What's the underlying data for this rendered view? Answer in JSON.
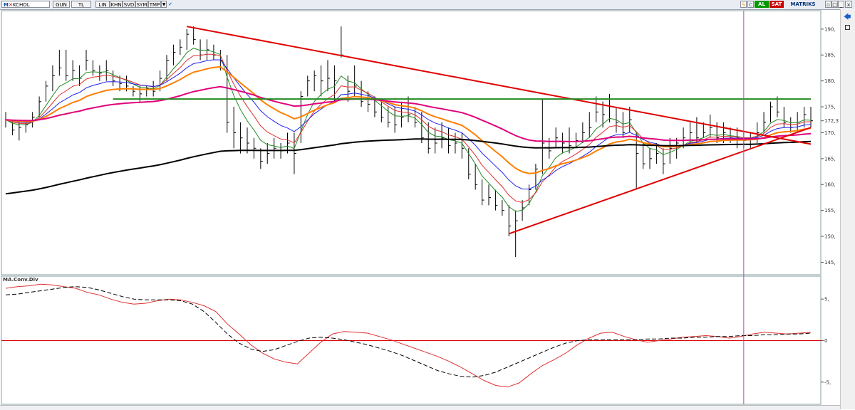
{
  "toolbar": {
    "symbol": "KCHOL",
    "buttons": [
      "GUN",
      "TL",
      "LIN",
      "KHN",
      "SVD",
      "SYM",
      "TMP"
    ],
    "al": "AL",
    "sat": "SAT",
    "brand": "MATRIKS",
    "al_color": "#009900",
    "sat_color": "#cc0000"
  },
  "chart_data": [
    {
      "type": "candlestick",
      "title": "",
      "ylim": [
        143,
        193
      ],
      "y_ticks": [
        "190,",
        "185,",
        "180,",
        "175,",
        "172,3",
        "170,",
        "165,",
        "160,",
        "155,",
        "150,",
        "145,"
      ],
      "y_tick_values": [
        190,
        185,
        180,
        175,
        172.3,
        170,
        165,
        160,
        155,
        150,
        145
      ],
      "last_price": 172.3,
      "bars": [
        {
          "h": 174,
          "l": 171,
          "c": 172.5
        },
        {
          "h": 172.5,
          "l": 169.5,
          "c": 170.5
        },
        {
          "h": 172,
          "l": 168.5,
          "c": 171
        },
        {
          "h": 172.5,
          "l": 170,
          "c": 171.5
        },
        {
          "h": 174,
          "l": 171,
          "c": 173
        },
        {
          "h": 177,
          "l": 173,
          "c": 176
        },
        {
          "h": 180,
          "l": 176,
          "c": 179
        },
        {
          "h": 183,
          "l": 178,
          "c": 181
        },
        {
          "h": 186,
          "l": 181,
          "c": 182.5
        },
        {
          "h": 186,
          "l": 180,
          "c": 181
        },
        {
          "h": 184,
          "l": 180,
          "c": 182
        },
        {
          "h": 183,
          "l": 179,
          "c": 180.5
        },
        {
          "h": 186,
          "l": 182,
          "c": 184
        },
        {
          "h": 184,
          "l": 181,
          "c": 182
        },
        {
          "h": 183,
          "l": 180,
          "c": 181.5
        },
        {
          "h": 184,
          "l": 180,
          "c": 182
        },
        {
          "h": 182,
          "l": 179,
          "c": 180
        },
        {
          "h": 181,
          "l": 178,
          "c": 179.5
        },
        {
          "h": 181,
          "l": 178,
          "c": 179
        },
        {
          "h": 179,
          "l": 177,
          "c": 178
        },
        {
          "h": 179,
          "l": 176,
          "c": 177.5
        },
        {
          "h": 179,
          "l": 177,
          "c": 178.5
        },
        {
          "h": 180,
          "l": 177,
          "c": 178
        },
        {
          "h": 182,
          "l": 178,
          "c": 180.5
        },
        {
          "h": 185,
          "l": 180,
          "c": 184
        },
        {
          "h": 187,
          "l": 183,
          "c": 185.5
        },
        {
          "h": 188,
          "l": 185,
          "c": 186.5
        },
        {
          "h": 190,
          "l": 186,
          "c": 189
        },
        {
          "h": 190.5,
          "l": 187,
          "c": 188
        },
        {
          "h": 188,
          "l": 184,
          "c": 185
        },
        {
          "h": 188,
          "l": 184,
          "c": 186
        },
        {
          "h": 187,
          "l": 184,
          "c": 185
        },
        {
          "h": 186,
          "l": 182,
          "c": 184
        },
        {
          "h": 185,
          "l": 170,
          "c": 172
        },
        {
          "h": 175,
          "l": 167,
          "c": 170
        },
        {
          "h": 172,
          "l": 166,
          "c": 169
        },
        {
          "h": 171,
          "l": 166,
          "c": 168
        },
        {
          "h": 169,
          "l": 165,
          "c": 167
        },
        {
          "h": 167,
          "l": 163,
          "c": 164.5
        },
        {
          "h": 168,
          "l": 164,
          "c": 166
        },
        {
          "h": 169,
          "l": 165,
          "c": 167
        },
        {
          "h": 168,
          "l": 165,
          "c": 166.5
        },
        {
          "h": 170,
          "l": 166,
          "c": 168
        },
        {
          "h": 170,
          "l": 162,
          "c": 166
        },
        {
          "h": 178,
          "l": 168,
          "c": 177
        },
        {
          "h": 181,
          "l": 177,
          "c": 180
        },
        {
          "h": 182,
          "l": 178,
          "c": 181
        },
        {
          "h": 183,
          "l": 177,
          "c": 180
        },
        {
          "h": 184,
          "l": 178,
          "c": 180.5
        },
        {
          "h": 183,
          "l": 176,
          "c": 180
        },
        {
          "h": 190.5,
          "l": 184.5,
          "c": 185
        },
        {
          "h": 181,
          "l": 176,
          "c": 178
        },
        {
          "h": 183,
          "l": 177,
          "c": 179
        },
        {
          "h": 180,
          "l": 175,
          "c": 176
        },
        {
          "h": 178,
          "l": 174,
          "c": 175.5
        },
        {
          "h": 177,
          "l": 173,
          "c": 174
        },
        {
          "h": 176,
          "l": 172,
          "c": 173
        },
        {
          "h": 175,
          "l": 171,
          "c": 172
        },
        {
          "h": 175,
          "l": 170,
          "c": 171.5
        },
        {
          "h": 176,
          "l": 171,
          "c": 173
        },
        {
          "h": 177,
          "l": 172,
          "c": 173.5
        },
        {
          "h": 175,
          "l": 171,
          "c": 172
        },
        {
          "h": 174,
          "l": 168,
          "c": 169
        },
        {
          "h": 172,
          "l": 166,
          "c": 167
        },
        {
          "h": 171,
          "l": 166,
          "c": 168
        },
        {
          "h": 172,
          "l": 167,
          "c": 169
        },
        {
          "h": 171,
          "l": 166,
          "c": 167.5
        },
        {
          "h": 170,
          "l": 166,
          "c": 168
        },
        {
          "h": 170,
          "l": 165,
          "c": 167
        },
        {
          "h": 167,
          "l": 161,
          "c": 162
        },
        {
          "h": 164,
          "l": 159,
          "c": 160
        },
        {
          "h": 161,
          "l": 156,
          "c": 157
        },
        {
          "h": 160,
          "l": 156,
          "c": 157.5
        },
        {
          "h": 159,
          "l": 155,
          "c": 156
        },
        {
          "h": 157,
          "l": 154,
          "c": 155
        },
        {
          "h": 156,
          "l": 150,
          "c": 152
        },
        {
          "h": 155,
          "l": 146,
          "c": 153
        },
        {
          "h": 157,
          "l": 153,
          "c": 155.5
        },
        {
          "h": 160,
          "l": 156,
          "c": 159
        },
        {
          "h": 164,
          "l": 159,
          "c": 163
        },
        {
          "h": 176.5,
          "l": 162,
          "c": 168
        },
        {
          "h": 169,
          "l": 165,
          "c": 166.5
        },
        {
          "h": 171,
          "l": 167,
          "c": 169
        },
        {
          "h": 170,
          "l": 166,
          "c": 168
        },
        {
          "h": 171,
          "l": 166,
          "c": 167.5
        },
        {
          "h": 170,
          "l": 167,
          "c": 168.5
        },
        {
          "h": 172,
          "l": 168,
          "c": 170
        },
        {
          "h": 174,
          "l": 169,
          "c": 171
        },
        {
          "h": 177,
          "l": 172,
          "c": 174
        },
        {
          "h": 176,
          "l": 171,
          "c": 173.5
        },
        {
          "h": 177.5,
          "l": 172,
          "c": 175
        },
        {
          "h": 175,
          "l": 170,
          "c": 172
        },
        {
          "h": 174,
          "l": 169,
          "c": 170
        },
        {
          "h": 175,
          "l": 170,
          "c": 172.5
        },
        {
          "h": 170,
          "l": 159,
          "c": 166
        },
        {
          "h": 168,
          "l": 163,
          "c": 164
        },
        {
          "h": 167,
          "l": 163,
          "c": 165
        },
        {
          "h": 168,
          "l": 164,
          "c": 166
        },
        {
          "h": 167,
          "l": 162,
          "c": 164
        },
        {
          "h": 169,
          "l": 164,
          "c": 167
        },
        {
          "h": 169,
          "l": 165,
          "c": 168
        },
        {
          "h": 171,
          "l": 167,
          "c": 169
        },
        {
          "h": 172,
          "l": 168,
          "c": 170
        },
        {
          "h": 173,
          "l": 168,
          "c": 169
        },
        {
          "h": 172,
          "l": 169,
          "c": 170
        },
        {
          "h": 173.5,
          "l": 169,
          "c": 171
        },
        {
          "h": 172,
          "l": 168,
          "c": 169
        },
        {
          "h": 172,
          "l": 168,
          "c": 170
        },
        {
          "h": 171,
          "l": 168,
          "c": 169
        },
        {
          "h": 171,
          "l": 167,
          "c": 169
        },
        {
          "h": 170,
          "l": 167,
          "c": 168.5
        },
        {
          "h": 170,
          "l": 167,
          "c": 169
        },
        {
          "h": 172,
          "l": 168,
          "c": 170
        },
        {
          "h": 174,
          "l": 170,
          "c": 172
        },
        {
          "h": 176,
          "l": 172,
          "c": 175
        },
        {
          "h": 177,
          "l": 173,
          "c": 174
        },
        {
          "h": 175,
          "l": 171,
          "c": 172
        },
        {
          "h": 173,
          "l": 170,
          "c": 171
        },
        {
          "h": 174,
          "l": 170,
          "c": 172
        },
        {
          "h": 175,
          "l": 171,
          "c": 173.5
        },
        {
          "h": 175,
          "l": 171,
          "c": 172.3
        }
      ],
      "moving_averages": [
        {
          "color": "#228B22",
          "period": 5
        },
        {
          "color": "#e03030",
          "period": 8
        },
        {
          "color": "#2222ee",
          "period": 13
        },
        {
          "color": "#ff7f00",
          "period": 21
        },
        {
          "color": "#e0007a",
          "period": 55
        },
        {
          "color": "#000000",
          "period": 144
        }
      ],
      "ma_seed_value": 158,
      "trendlines": [
        {
          "color": "#e00000",
          "from": {
            "bar": 27,
            "y": 190.5
          },
          "to": {
            "bar": 120,
            "y": 167.8
          }
        },
        {
          "color": "#e00000",
          "from": {
            "bar": 75,
            "y": 150.5
          },
          "to": {
            "bar": 120,
            "y": 171
          }
        },
        {
          "color": "#228B22",
          "from": {
            "bar": 16,
            "y": 176.5
          },
          "to": {
            "bar": 120,
            "y": 176.5
          }
        }
      ],
      "vertical_marker_bar": 110
    },
    {
      "type": "line",
      "title": "MA.Conv.Div",
      "ylim": [
        -7.5,
        7.5
      ],
      "y_ticks": [
        "5,",
        "0",
        "-5,"
      ],
      "y_tick_values": [
        5,
        0,
        -5
      ],
      "zero_line_color": "#e00000",
      "series": [
        {
          "color": "#e03030",
          "dash": false,
          "values": [
            6.3,
            6.5,
            6.6,
            6.8,
            6.7,
            6.5,
            6.3,
            5.8,
            5.5,
            5.0,
            4.6,
            4.4,
            4.5,
            4.8,
            5.0,
            4.9,
            4.6,
            4.2,
            3.5,
            2.0,
            0.8,
            -0.5,
            -1.5,
            -2.2,
            -2.6,
            -2.8,
            -1.5,
            -0.2,
            0.8,
            1.1,
            1.0,
            0.9,
            0.5,
            0.1,
            -0.4,
            -0.9,
            -1.4,
            -1.9,
            -2.5,
            -3.2,
            -4.0,
            -4.8,
            -5.4,
            -5.6,
            -5.1,
            -4.0,
            -3.0,
            -2.3,
            -1.5,
            -0.5,
            0.3,
            0.9,
            1.0,
            0.5,
            0.1,
            -0.2,
            0.0,
            0.2,
            0.4,
            0.5,
            0.6,
            0.5,
            0.3,
            0.5,
            0.8,
            1.0,
            0.9,
            0.8,
            0.9,
            1.0
          ]
        },
        {
          "color": "#000000",
          "dash": true,
          "values": [
            5.5,
            5.6,
            5.8,
            6.0,
            6.2,
            6.4,
            6.5,
            6.4,
            6.1,
            5.7,
            5.3,
            5.0,
            4.9,
            4.9,
            4.9,
            4.8,
            4.4,
            3.5,
            2.2,
            0.8,
            -0.3,
            -1.0,
            -1.3,
            -1.1,
            -0.6,
            -0.1,
            0.3,
            0.4,
            0.3,
            0.1,
            -0.2,
            -0.5,
            -0.9,
            -1.3,
            -1.8,
            -2.4,
            -3.0,
            -3.6,
            -4.0,
            -4.3,
            -4.4,
            -4.2,
            -3.8,
            -3.2,
            -2.6,
            -2.0,
            -1.4,
            -0.8,
            -0.3,
            0.0,
            0.1,
            0.1,
            0.1,
            0.1,
            0.1,
            0.2,
            0.2,
            0.3,
            0.3,
            0.4,
            0.4,
            0.5,
            0.5,
            0.6,
            0.6,
            0.7,
            0.7,
            0.8,
            0.8,
            0.9
          ]
        }
      ]
    }
  ]
}
